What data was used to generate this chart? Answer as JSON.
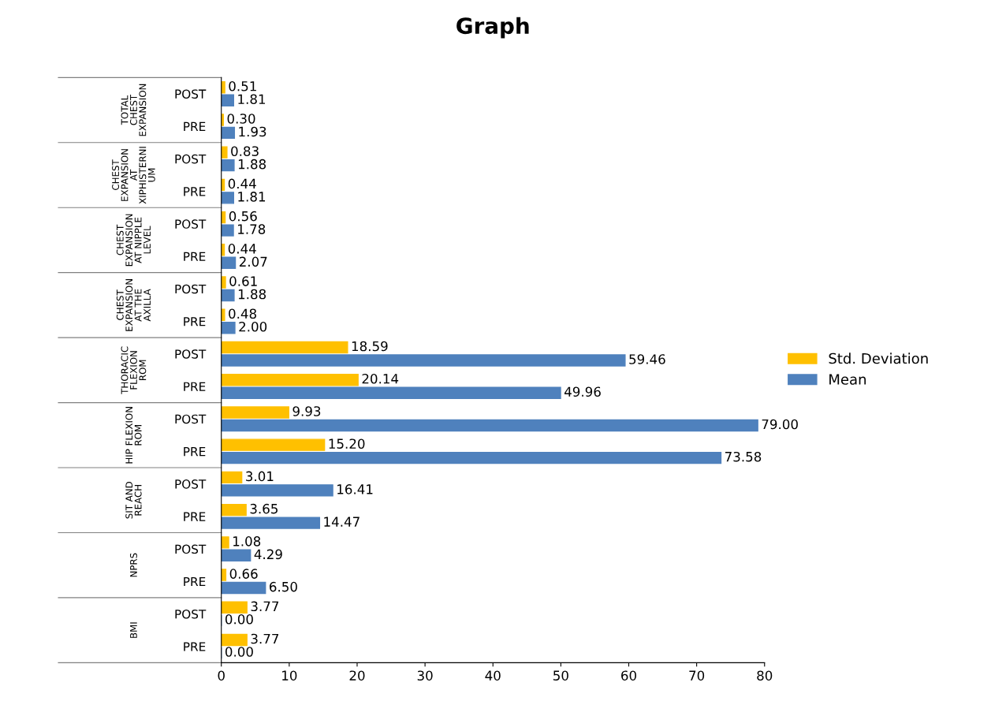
{
  "chart_data": {
    "type": "bar",
    "orientation": "horizontal",
    "title": "Graph",
    "categories": [
      "POST",
      "PRE",
      "POST",
      "PRE",
      "POST",
      "PRE",
      "POST",
      "PRE",
      "POST",
      "PRE",
      "POST",
      "PRE",
      "POST",
      "PRE",
      "POST",
      "PRE",
      "POST",
      "PRE"
    ],
    "annotations": [
      "TOTAL\nCHEST\nEXPANSION",
      "CHEST\nEXPANSION\nAT\nXIPHISTERNI\nUM",
      "CHEST\nEXPANSION\nAT NIPPLE\nLEVEL",
      "CHEST\nEXPANSION\nAT THE\nAXILLA",
      "THORACIC\nFLEXION\nROM",
      "HIP FLEXION\nROM",
      "SIT AND\nREACH",
      "NPRS",
      "BMI"
    ],
    "series": [
      {
        "name": "Std. Deviation",
        "color": "#ffc000",
        "values": [
          0.51,
          0.3,
          0.83,
          0.44,
          0.56,
          0.44,
          0.61,
          0.48,
          18.59,
          20.14,
          9.93,
          15.2,
          3.01,
          3.65,
          1.08,
          0.66,
          3.77,
          3.77
        ],
        "value_labels": [
          "0.51",
          "0.30",
          "0.83",
          "0.44",
          "0.56",
          "0.44",
          "0.61",
          "0.48",
          "18.59",
          "20.14",
          "9.93",
          "15.20",
          "3.01",
          "3.65",
          "1.08",
          "0.66",
          "3.77",
          "3.77"
        ]
      },
      {
        "name": "Mean",
        "color": "#4f81bd",
        "values": [
          1.81,
          1.93,
          1.88,
          1.81,
          1.78,
          2.07,
          1.88,
          2.0,
          59.46,
          49.96,
          79.0,
          73.58,
          16.41,
          14.47,
          4.29,
          6.5,
          0.0,
          0.0
        ],
        "value_labels": [
          "1.81",
          "1.93",
          "1.88",
          "1.81",
          "1.78",
          "2.07",
          "1.88",
          "2.00",
          "59.46",
          "49.96",
          "79.00",
          "73.58",
          "16.41",
          "14.47",
          "4.29",
          "6.50",
          "0.00",
          "0.00"
        ]
      }
    ],
    "xlim": [
      0,
      80
    ],
    "xticks": [
      0,
      10,
      20,
      30,
      40,
      50,
      60,
      70,
      80
    ],
    "grid": false,
    "legend": "right"
  }
}
